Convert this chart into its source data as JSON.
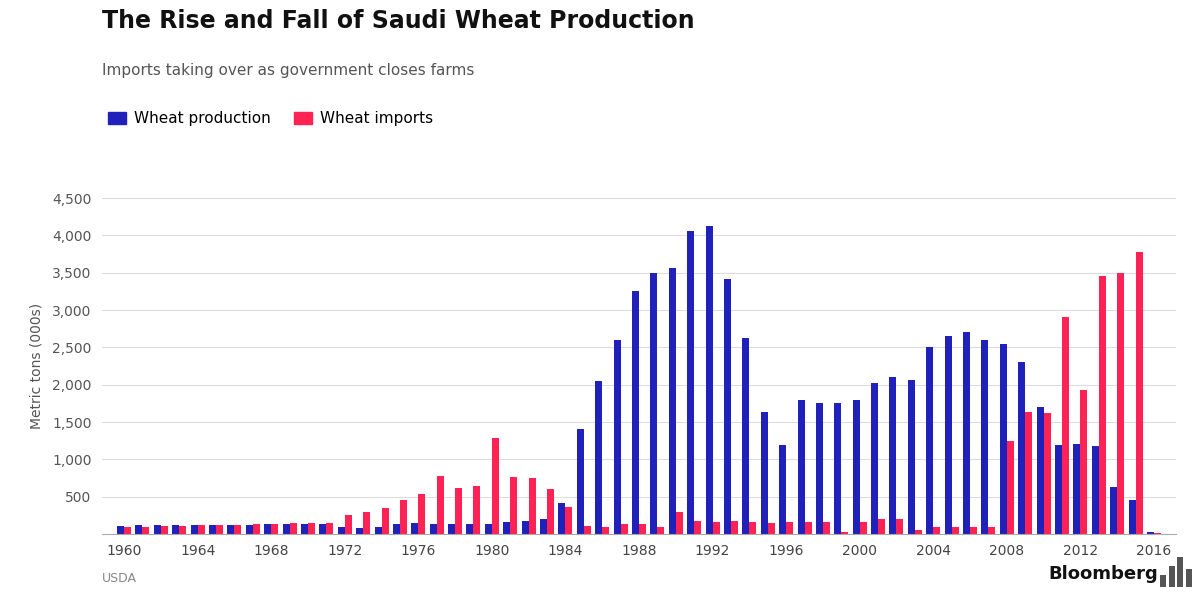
{
  "title": "The Rise and Fall of Saudi Wheat Production",
  "subtitle": "Imports taking over as government closes farms",
  "ylabel": "Metric tons (000s)",
  "source": "USDA",
  "legend": [
    "Wheat production",
    "Wheat imports"
  ],
  "production_color": "#2020bb",
  "imports_color": "#ff2255",
  "background_color": "#ffffff",
  "ylim": [
    0,
    4500
  ],
  "yticks": [
    0,
    500,
    1000,
    1500,
    2000,
    2500,
    3000,
    3500,
    4000,
    4500
  ],
  "years": [
    1960,
    1961,
    1962,
    1963,
    1964,
    1965,
    1966,
    1967,
    1968,
    1969,
    1970,
    1971,
    1972,
    1973,
    1974,
    1975,
    1976,
    1977,
    1978,
    1979,
    1980,
    1981,
    1982,
    1983,
    1984,
    1985,
    1986,
    1987,
    1988,
    1989,
    1990,
    1991,
    1992,
    1993,
    1994,
    1995,
    1996,
    1997,
    1998,
    1999,
    2000,
    2001,
    2002,
    2003,
    2004,
    2005,
    2006,
    2007,
    2008,
    2009,
    2010,
    2011,
    2012,
    2013,
    2014,
    2015,
    2016
  ],
  "production": [
    110,
    115,
    118,
    120,
    125,
    120,
    120,
    120,
    130,
    135,
    130,
    130,
    95,
    80,
    100,
    140,
    150,
    140,
    130,
    130,
    140,
    160,
    180,
    200,
    420,
    1400,
    2050,
    2600,
    3250,
    3500,
    3560,
    4060,
    4120,
    3420,
    2620,
    1640,
    1190,
    1800,
    1750,
    1750,
    1800,
    2020,
    2100,
    2060,
    2500,
    2650,
    2700,
    2600,
    2550,
    2300,
    1700,
    1190,
    1200,
    1180,
    630,
    460,
    30
  ],
  "imports": [
    100,
    100,
    105,
    110,
    120,
    120,
    125,
    130,
    140,
    145,
    150,
    150,
    250,
    300,
    350,
    450,
    530,
    780,
    620,
    640,
    1290,
    760,
    750,
    600,
    365,
    110,
    90,
    130,
    140,
    100,
    300,
    180,
    155,
    175,
    155,
    150,
    160,
    160,
    155,
    30,
    155,
    200,
    200,
    50,
    90,
    100,
    100,
    100,
    1250,
    1640,
    1620,
    2900,
    1930,
    3460,
    3500,
    3780,
    20
  ]
}
